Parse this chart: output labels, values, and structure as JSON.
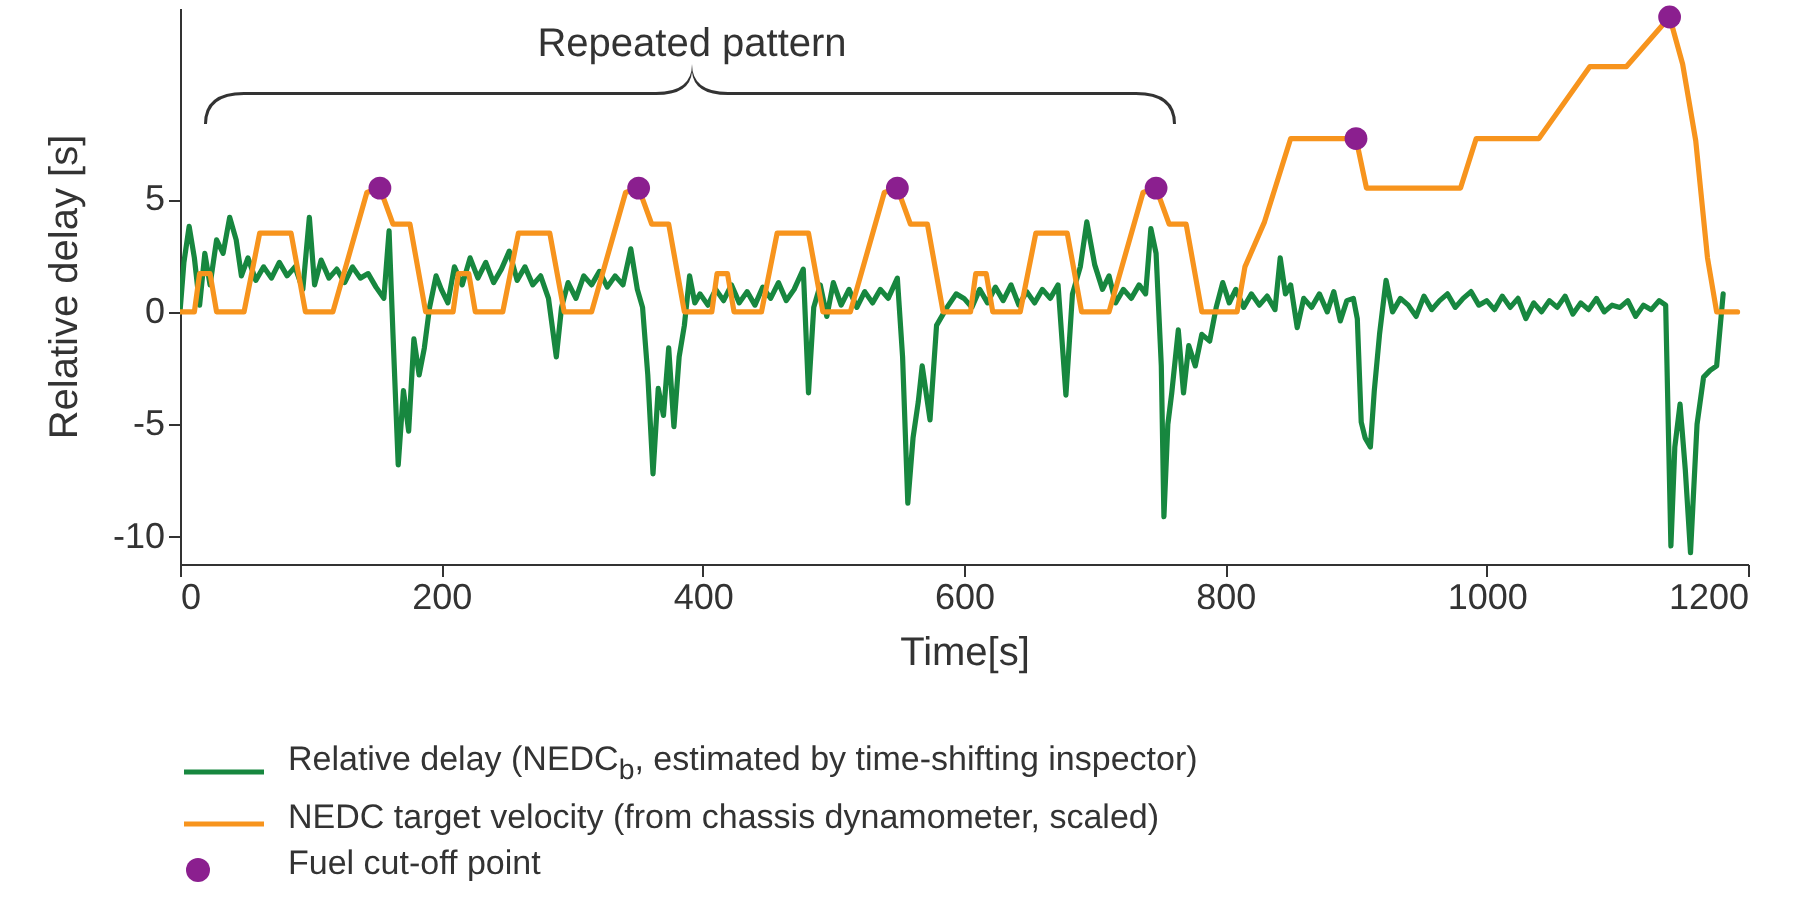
{
  "chart_data": {
    "type": "line",
    "xlabel": "Time[s]",
    "ylabel": "Relative delay [s]",
    "annotations": [
      "Repeated pattern"
    ],
    "xlim": [
      0,
      1200
    ],
    "xticks": [
      0,
      200,
      400,
      600,
      800,
      1000,
      1200
    ],
    "ylim": [
      -11.2,
      13.5
    ],
    "yticks": [
      -10,
      -5,
      0,
      5
    ],
    "grid": false,
    "legend": "bottom",
    "line_style": "solid",
    "series": [
      {
        "name": "Relative delay (NEDC$_{b}$, estimated by time-shifting inspector)",
        "color": "#17873f",
        "x": [
          0,
          3,
          7,
          11,
          15,
          19,
          23,
          28,
          33,
          38,
          43,
          47,
          52,
          58,
          64,
          70,
          76,
          82,
          88,
          94,
          99,
          103,
          108,
          114,
          120,
          126,
          132,
          138,
          144,
          150,
          156,
          160,
          163,
          167,
          171,
          175,
          179,
          183,
          187,
          191,
          196,
          200,
          205,
          210,
          216,
          222,
          228,
          234,
          240,
          246,
          252,
          258,
          264,
          270,
          276,
          282,
          288,
          292,
          297,
          303,
          309,
          315,
          321,
          327,
          333,
          339,
          345,
          350,
          354,
          358,
          362,
          366,
          370,
          374,
          378,
          382,
          386,
          390,
          394,
          398,
          404,
          410,
          416,
          422,
          428,
          434,
          440,
          446,
          452,
          458,
          464,
          470,
          477,
          481,
          485,
          490,
          495,
          500,
          506,
          512,
          518,
          524,
          530,
          536,
          542,
          549,
          553,
          557,
          561,
          565,
          568,
          574,
          579,
          587,
          594,
          600,
          606,
          612,
          618,
          624,
          630,
          636,
          642,
          648,
          654,
          660,
          666,
          672,
          678,
          683,
          689,
          694,
          700,
          706,
          711,
          716,
          722,
          728,
          734,
          739,
          743,
          747,
          751,
          753,
          756,
          759,
          764,
          768,
          772,
          777,
          782,
          788,
          793,
          798,
          803,
          808,
          814,
          820,
          826,
          832,
          838,
          842,
          846,
          850,
          855,
          860,
          866,
          872,
          878,
          883,
          888,
          893,
          898,
          901,
          904,
          907,
          911,
          914,
          918,
          923,
          928,
          934,
          940,
          946,
          952,
          958,
          964,
          970,
          976,
          982,
          988,
          994,
          1000,
          1006,
          1012,
          1018,
          1024,
          1030,
          1036,
          1042,
          1048,
          1054,
          1060,
          1066,
          1072,
          1078,
          1084,
          1090,
          1096,
          1102,
          1108,
          1114,
          1120,
          1126,
          1132,
          1137,
          1141,
          1144,
          1148,
          1152,
          1156,
          1161,
          1166,
          1171,
          1176,
          1181
        ],
        "values": [
          0,
          2.2,
          3.8,
          2.4,
          0.3,
          2.6,
          1.2,
          3.2,
          2.6,
          4.2,
          3.2,
          1.6,
          2.4,
          1.4,
          2.0,
          1.5,
          2.2,
          1.6,
          2.0,
          1.0,
          4.2,
          1.2,
          2.3,
          1.5,
          1.9,
          1.3,
          2.0,
          1.5,
          1.7,
          1.1,
          0.6,
          3.6,
          -1.0,
          -6.8,
          -3.5,
          -5.3,
          -1.2,
          -2.8,
          -1.6,
          0.2,
          1.6,
          1.0,
          0.4,
          2.0,
          1.2,
          2.4,
          1.5,
          2.2,
          1.3,
          1.9,
          2.7,
          1.4,
          2.0,
          1.2,
          1.6,
          0.6,
          -2.0,
          0.2,
          1.3,
          0.6,
          1.6,
          1.2,
          1.8,
          1.1,
          1.6,
          1.2,
          2.8,
          1.0,
          0.2,
          -2.8,
          -7.2,
          -3.4,
          -4.6,
          -1.6,
          -5.1,
          -2.0,
          -0.6,
          1.6,
          0.4,
          0.8,
          0.3,
          1.0,
          0.5,
          1.2,
          0.4,
          0.9,
          0.3,
          1.1,
          0.6,
          1.3,
          0.5,
          1.0,
          1.9,
          -3.6,
          0.2,
          1.2,
          -0.2,
          1.3,
          0.3,
          1.0,
          0.2,
          0.9,
          0.4,
          1.0,
          0.6,
          1.5,
          -2.0,
          -8.5,
          -5.6,
          -4.0,
          -2.4,
          -4.8,
          -0.6,
          0.2,
          0.8,
          0.6,
          0.2,
          1.0,
          0.4,
          1.1,
          0.5,
          1.2,
          0.3,
          0.9,
          0.4,
          1.0,
          0.6,
          1.2,
          -3.7,
          0.8,
          2.0,
          4.0,
          2.1,
          1.0,
          1.6,
          0.4,
          1.0,
          0.6,
          1.2,
          0.8,
          3.7,
          2.6,
          -2.4,
          -9.1,
          -5.0,
          -3.6,
          -0.8,
          -3.6,
          -1.5,
          -2.4,
          -1.0,
          -1.3,
          0.2,
          1.3,
          0.4,
          1.0,
          0.2,
          0.8,
          0.3,
          0.7,
          0.1,
          2.4,
          0.8,
          1.2,
          -0.7,
          0.6,
          0.2,
          0.8,
          0.0,
          0.9,
          -0.4,
          0.5,
          0.6,
          -0.3,
          -4.9,
          -5.6,
          -6.0,
          -3.5,
          -1.0,
          1.4,
          0.0,
          0.6,
          0.3,
          -0.2,
          0.7,
          0.1,
          0.5,
          0.8,
          0.2,
          0.6,
          0.9,
          0.3,
          0.5,
          0.1,
          0.7,
          0.2,
          0.6,
          -0.3,
          0.4,
          0.0,
          0.5,
          0.2,
          0.7,
          -0.1,
          0.4,
          0.1,
          0.6,
          0.0,
          0.3,
          0.2,
          0.5,
          -0.2,
          0.3,
          0.1,
          0.5,
          0.3,
          -10.4,
          -6.0,
          -4.1,
          -7.0,
          -10.7,
          -5.0,
          -2.9,
          -2.6,
          -2.4,
          0.8
        ]
      },
      {
        "name": "NEDC target velocity (from chassis dynamometer, scaled)",
        "color": "#f7941d",
        "x": [
          0,
          11,
          15,
          23,
          28,
          49,
          61,
          85,
          96,
          117,
          143,
          153,
          163,
          176,
          188,
          198,
          209,
          213,
          221,
          226,
          247,
          259,
          283,
          294,
          315,
          341,
          351,
          361,
          374,
          386,
          396,
          407,
          411,
          419,
          424,
          445,
          457,
          481,
          492,
          513,
          539,
          549,
          559,
          572,
          584,
          594,
          605,
          609,
          617,
          622,
          643,
          655,
          679,
          690,
          711,
          737,
          747,
          757,
          770,
          782,
          809,
          815,
          830,
          850,
          900,
          908,
          980,
          992,
          1040,
          1079,
          1107,
          1140,
          1150,
          1160,
          1169,
          1176,
          1192
        ],
        "values": [
          0,
          0,
          1.7,
          1.7,
          0,
          0,
          3.5,
          3.5,
          0,
          0,
          5.3,
          5.5,
          3.9,
          3.9,
          0,
          0,
          0,
          1.7,
          1.7,
          0,
          0,
          3.5,
          3.5,
          0,
          0,
          5.3,
          5.5,
          3.9,
          3.9,
          0,
          0,
          0,
          1.7,
          1.7,
          0,
          0,
          3.5,
          3.5,
          0,
          0,
          5.3,
          5.5,
          3.9,
          3.9,
          0,
          0,
          0,
          1.7,
          1.7,
          0,
          0,
          3.5,
          3.5,
          0,
          0,
          5.3,
          5.5,
          3.9,
          3.9,
          0,
          0,
          2,
          4,
          7.7,
          7.7,
          5.5,
          5.5,
          7.7,
          7.7,
          10.9,
          10.9,
          13.1,
          11,
          7.6,
          2.4,
          0,
          0
        ]
      },
      {
        "name": "Fuel cut-off point",
        "color": "#8b1f8f",
        "type": "scatter",
        "marker": "circle",
        "x": [
          153,
          351,
          549,
          747,
          900,
          1140
        ],
        "values": [
          5.5,
          5.5,
          5.5,
          5.5,
          7.7,
          13.1
        ]
      }
    ]
  }
}
